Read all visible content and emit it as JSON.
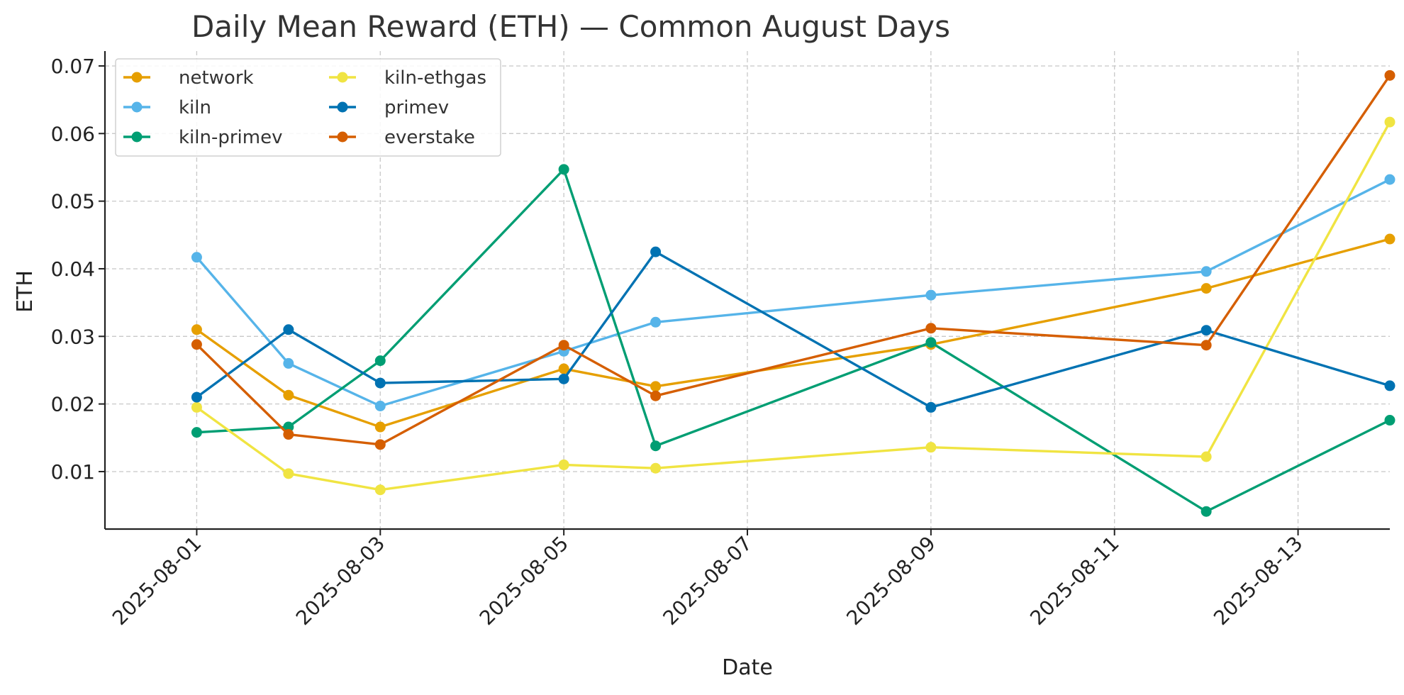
{
  "chart_data": {
    "type": "line",
    "title": "Daily Mean Reward (ETH) — Common August Days",
    "xlabel": "Date",
    "ylabel": "ETH",
    "x": [
      "2025-08-01",
      "2025-08-02",
      "2025-08-03",
      "2025-08-05",
      "2025-08-06",
      "2025-08-09",
      "2025-08-12",
      "2025-08-14"
    ],
    "x_ticks": [
      "2025-08-01",
      "2025-08-03",
      "2025-08-05",
      "2025-08-07",
      "2025-08-09",
      "2025-08-11",
      "2025-08-13"
    ],
    "y_ticks": [
      0.01,
      0.02,
      0.03,
      0.04,
      0.05,
      0.06,
      0.07
    ],
    "y_tick_labels": [
      "0.01",
      "0.02",
      "0.03",
      "0.04",
      "0.05",
      "0.06",
      "0.07"
    ],
    "xlim": [
      "2025-07-31",
      "2025-08-14"
    ],
    "ylim": [
      0.0015,
      0.0722
    ],
    "grid": true,
    "legend_position": "top-left",
    "series": [
      {
        "name": "network",
        "color": "#E69F00",
        "values": [
          0.031,
          0.0213,
          0.0166,
          0.0252,
          0.0226,
          0.0288,
          0.0371,
          0.0444
        ]
      },
      {
        "name": "kiln",
        "color": "#56B4E9",
        "values": [
          0.0417,
          0.026,
          0.0197,
          0.0278,
          0.0321,
          0.0361,
          0.0396,
          0.0532
        ]
      },
      {
        "name": "kiln-primev",
        "color": "#009E73",
        "values": [
          0.0158,
          0.0166,
          0.0264,
          0.0547,
          0.0138,
          0.0291,
          0.0041,
          0.0176
        ]
      },
      {
        "name": "kiln-ethgas",
        "color": "#F0E442",
        "values": [
          0.0195,
          0.0097,
          0.0073,
          0.011,
          0.0105,
          0.0136,
          0.0122,
          0.0617
        ]
      },
      {
        "name": "primev",
        "color": "#0072B2",
        "values": [
          0.021,
          0.031,
          0.0231,
          0.0237,
          0.0425,
          0.0195,
          0.0309,
          0.0227
        ]
      },
      {
        "name": "everstake",
        "color": "#D55E00",
        "values": [
          0.0288,
          0.0155,
          0.014,
          0.0287,
          0.0212,
          0.0312,
          0.0287,
          0.0686
        ]
      }
    ]
  }
}
